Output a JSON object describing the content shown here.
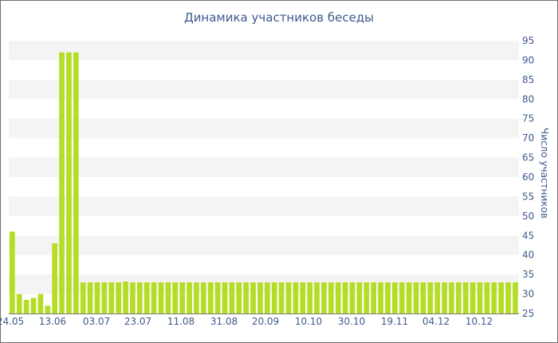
{
  "chart_data": {
    "type": "bar",
    "title": "Динамика участников беседы",
    "xlabel": "",
    "ylabel": "Число участников",
    "ylim": [
      25,
      95
    ],
    "y_axis_position": "right",
    "grid": "alternating horizontal bands",
    "y_ticks": [
      25,
      30,
      35,
      40,
      45,
      50,
      55,
      60,
      65,
      70,
      75,
      80,
      85,
      90,
      95
    ],
    "x_tick_labels": [
      "24.05",
      "13.06",
      "03.07",
      "23.07",
      "11.08",
      "31.08",
      "20.09",
      "10.10",
      "30.10",
      "19.11",
      "04.12",
      "10.12"
    ],
    "colors": {
      "bar": "#b5dd25",
      "band": "#f4f4f4",
      "text": "#3e5a8c",
      "border": "#6f6f6f"
    },
    "values": [
      46,
      30,
      28.5,
      29,
      30,
      27,
      43,
      92,
      92,
      92,
      33,
      33,
      33,
      33,
      33,
      33,
      33.2,
      33,
      33,
      33,
      33,
      33,
      33,
      33,
      33,
      33,
      33,
      33,
      33,
      33,
      33,
      33,
      33,
      33,
      33,
      33,
      33,
      33,
      33,
      33,
      33,
      33,
      33,
      33,
      33,
      33,
      33,
      33,
      33,
      33,
      33,
      33,
      33,
      33,
      33,
      33,
      33,
      33,
      33,
      33,
      33,
      33,
      33,
      33,
      33,
      33,
      33,
      33,
      33,
      33,
      33,
      33
    ]
  }
}
